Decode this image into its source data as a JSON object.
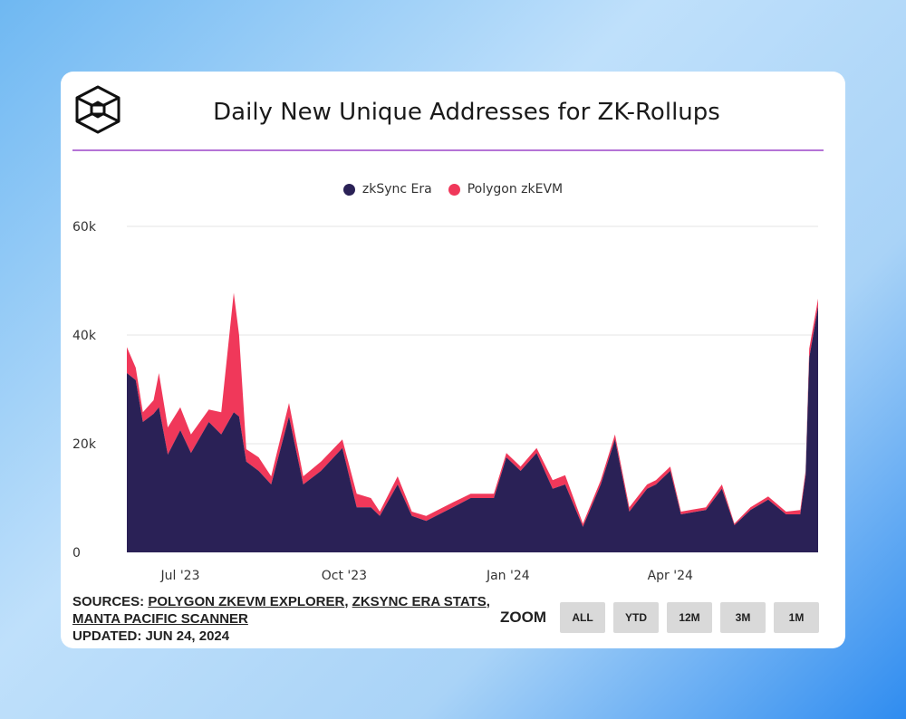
{
  "chart_data": {
    "type": "area",
    "stacked": true,
    "title": "Daily New Unique Addresses for ZK-Rollups",
    "xlabel": "",
    "ylabel": "",
    "ylim": [
      0,
      60000
    ],
    "yticks": [
      0,
      20000,
      40000,
      60000
    ],
    "ytick_labels": [
      "0",
      "20k",
      "40k",
      "60k"
    ],
    "xrange": [
      "2023-06-01",
      "2024-06-23"
    ],
    "xticks": [
      {
        "date": "2023-07-01",
        "label": "Jul '23"
      },
      {
        "date": "2023-10-01",
        "label": "Oct '23"
      },
      {
        "date": "2024-01-01",
        "label": "Jan '24"
      },
      {
        "date": "2024-04-01",
        "label": "Apr '24"
      }
    ],
    "grid": true,
    "legend_position": "top-center",
    "x": [
      "2023-06-01",
      "2023-06-06",
      "2023-06-10",
      "2023-06-16",
      "2023-06-19",
      "2023-06-24",
      "2023-07-01",
      "2023-07-07",
      "2023-07-17",
      "2023-07-24",
      "2023-07-31",
      "2023-08-03",
      "2023-08-07",
      "2023-08-14",
      "2023-08-21",
      "2023-08-31",
      "2023-09-08",
      "2023-09-18",
      "2023-09-30",
      "2023-10-08",
      "2023-10-16",
      "2023-10-21",
      "2023-10-31",
      "2023-11-08",
      "2023-11-16",
      "2023-12-01",
      "2023-12-11",
      "2023-12-24",
      "2023-12-31",
      "2024-01-08",
      "2024-01-17",
      "2024-01-26",
      "2024-02-02",
      "2024-02-12",
      "2024-02-22",
      "2024-03-01",
      "2024-03-09",
      "2024-03-19",
      "2024-03-24",
      "2024-04-01",
      "2024-04-07",
      "2024-04-21",
      "2024-04-30",
      "2024-05-07",
      "2024-05-16",
      "2024-05-26",
      "2024-06-05",
      "2024-06-13",
      "2024-06-16",
      "2024-06-18",
      "2024-06-23"
    ],
    "series": [
      {
        "name": "zkSync Era",
        "color": "#2a2156",
        "values": [
          33000,
          31700,
          24000,
          25500,
          26700,
          18000,
          22500,
          18300,
          24000,
          21700,
          25800,
          25000,
          16700,
          15000,
          12500,
          25000,
          12500,
          15000,
          19200,
          8300,
          8300,
          6700,
          12500,
          6700,
          5800,
          8300,
          10000,
          10000,
          17500,
          15000,
          18300,
          11700,
          12500,
          4700,
          12500,
          20800,
          7500,
          11700,
          12500,
          15000,
          7000,
          7800,
          11700,
          5000,
          7800,
          9700,
          7000,
          7000,
          14200,
          35800,
          45300
        ]
      },
      {
        "name": "Polygon zkEVM",
        "color": "#f0385a",
        "values": [
          4800,
          2300,
          1800,
          2500,
          6300,
          5000,
          4200,
          3400,
          2300,
          4100,
          22000,
          15000,
          2300,
          2500,
          1500,
          2500,
          1500,
          1700,
          1600,
          2500,
          1700,
          800,
          1500,
          800,
          900,
          900,
          800,
          800,
          800,
          800,
          900,
          1600,
          1700,
          600,
          800,
          900,
          800,
          800,
          800,
          800,
          500,
          500,
          800,
          300,
          500,
          600,
          500,
          800,
          800,
          1700,
          1400
        ]
      }
    ]
  },
  "legend": {
    "items": [
      "zkSync Era",
      "Polygon zkEVM"
    ]
  },
  "footer": {
    "sources_prefix": "SOURCES: ",
    "link1": "POLYGON ZKEVM EXPLORER",
    "sep1": ", ",
    "link2": "ZKSYNC ERA STATS",
    "sep2": ", ",
    "link3": "MANTA PACIFIC SCANNER",
    "updated": "UPDATED: JUN 24, 2024"
  },
  "zoom": {
    "label": "ZOOM",
    "buttons": [
      "ALL",
      "YTD",
      "12M",
      "3M",
      "1M"
    ]
  }
}
